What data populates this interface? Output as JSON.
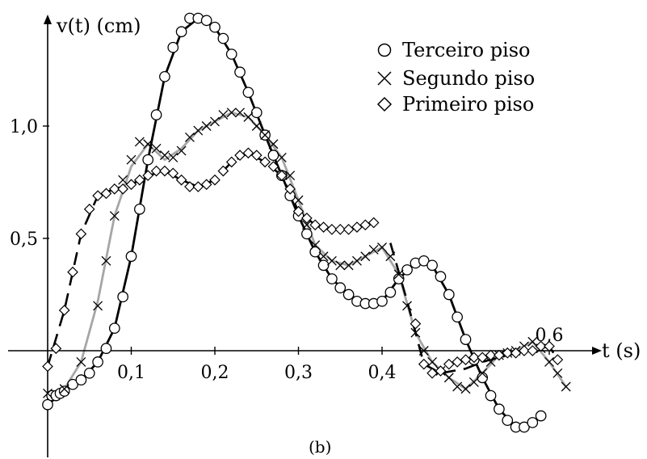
{
  "chart_data": {
    "type": "line",
    "panel_label": "(b)",
    "xlabel": "t (s)",
    "ylabel": "v(t) (cm)",
    "xlim": [
      -0.01,
      0.63
    ],
    "ylim": [
      -0.47,
      1.51
    ],
    "x_ticks": [
      {
        "value": 0.1,
        "label": "0,1"
      },
      {
        "value": 0.2,
        "label": "0,2"
      },
      {
        "value": 0.3,
        "label": "0,3"
      },
      {
        "value": 0.4,
        "label": "0,4"
      },
      {
        "value": 0.6,
        "label": "0,6"
      }
    ],
    "y_ticks": [
      {
        "value": 0.5,
        "label": "0,5"
      },
      {
        "value": 1.0,
        "label": "1,0"
      }
    ],
    "legend_position": "top-right",
    "legend": [
      {
        "label": "Terceiro piso",
        "marker": "circle"
      },
      {
        "label": "Segundo piso",
        "marker": "x"
      },
      {
        "label": "Primeiro piso",
        "marker": "diamond"
      }
    ],
    "series": [
      {
        "name": "Terceiro piso",
        "marker": "circle",
        "line_color": "#000000",
        "line_style": "solid",
        "line_segments": [
          [
            [
              0.0,
              -0.24
            ],
            [
              0.02,
              -0.18
            ],
            [
              0.04,
              -0.13
            ],
            [
              0.06,
              -0.05
            ],
            [
              0.08,
              0.1
            ],
            [
              0.1,
              0.42
            ],
            [
              0.12,
              0.85
            ],
            [
              0.14,
              1.22
            ],
            [
              0.16,
              1.42
            ],
            [
              0.18,
              1.48
            ],
            [
              0.2,
              1.44
            ],
            [
              0.22,
              1.32
            ],
            [
              0.24,
              1.15
            ],
            [
              0.26,
              0.96
            ],
            [
              0.28,
              0.78
            ],
            [
              0.3,
              0.6
            ],
            [
              0.32,
              0.44
            ],
            [
              0.34,
              0.32
            ],
            [
              0.36,
              0.25
            ],
            [
              0.38,
              0.21
            ],
            [
              0.4,
              0.22
            ],
            [
              0.42,
              0.32
            ],
            [
              0.44,
              0.39
            ],
            [
              0.46,
              0.38
            ],
            [
              0.48,
              0.25
            ],
            [
              0.5,
              0.05
            ],
            [
              0.52,
              -0.12
            ],
            [
              0.54,
              -0.26
            ],
            [
              0.56,
              -0.34
            ],
            [
              0.58,
              -0.32
            ],
            [
              0.59,
              -0.29
            ]
          ]
        ],
        "markers": [
          [
            0.0,
            -0.24
          ],
          [
            0.005,
            -0.2
          ],
          [
            0.01,
            -0.2
          ],
          [
            0.015,
            -0.19
          ],
          [
            0.02,
            -0.18
          ],
          [
            0.03,
            -0.15
          ],
          [
            0.04,
            -0.13
          ],
          [
            0.05,
            -0.1
          ],
          [
            0.06,
            -0.05
          ],
          [
            0.07,
            0.01
          ],
          [
            0.08,
            0.1
          ],
          [
            0.09,
            0.24
          ],
          [
            0.1,
            0.42
          ],
          [
            0.11,
            0.63
          ],
          [
            0.12,
            0.85
          ],
          [
            0.13,
            1.05
          ],
          [
            0.14,
            1.22
          ],
          [
            0.15,
            1.35
          ],
          [
            0.16,
            1.42
          ],
          [
            0.17,
            1.48
          ],
          [
            0.18,
            1.48
          ],
          [
            0.19,
            1.47
          ],
          [
            0.2,
            1.44
          ],
          [
            0.21,
            1.39
          ],
          [
            0.22,
            1.32
          ],
          [
            0.23,
            1.24
          ],
          [
            0.24,
            1.15
          ],
          [
            0.25,
            1.06
          ],
          [
            0.26,
            0.96
          ],
          [
            0.27,
            0.87
          ],
          [
            0.28,
            0.78
          ],
          [
            0.29,
            0.69
          ],
          [
            0.3,
            0.6
          ],
          [
            0.31,
            0.52
          ],
          [
            0.32,
            0.44
          ],
          [
            0.33,
            0.38
          ],
          [
            0.34,
            0.32
          ],
          [
            0.35,
            0.28
          ],
          [
            0.36,
            0.25
          ],
          [
            0.37,
            0.22
          ],
          [
            0.38,
            0.21
          ],
          [
            0.39,
            0.21
          ],
          [
            0.4,
            0.22
          ],
          [
            0.41,
            0.26
          ],
          [
            0.42,
            0.32
          ],
          [
            0.43,
            0.36
          ],
          [
            0.44,
            0.39
          ],
          [
            0.45,
            0.4
          ],
          [
            0.46,
            0.38
          ],
          [
            0.47,
            0.33
          ],
          [
            0.48,
            0.25
          ],
          [
            0.49,
            0.15
          ],
          [
            0.5,
            0.05
          ],
          [
            0.51,
            -0.04
          ],
          [
            0.52,
            -0.12
          ],
          [
            0.53,
            -0.2
          ],
          [
            0.54,
            -0.26
          ],
          [
            0.55,
            -0.31
          ],
          [
            0.56,
            -0.34
          ],
          [
            0.57,
            -0.34
          ],
          [
            0.58,
            -0.32
          ],
          [
            0.59,
            -0.29
          ]
        ]
      },
      {
        "name": "Segundo piso",
        "marker": "x",
        "line_color": "#a6a6a6",
        "line_style": "solid",
        "line_segments": [
          [
            [
              0.0,
              -0.19
            ],
            [
              0.02,
              -0.17
            ],
            [
              0.04,
              -0.05
            ],
            [
              0.06,
              0.22
            ],
            [
              0.08,
              0.6
            ],
            [
              0.1,
              0.82
            ],
            [
              0.12,
              0.92
            ],
            [
              0.14,
              0.85
            ],
            [
              0.16,
              0.9
            ],
            [
              0.18,
              0.98
            ],
            [
              0.2,
              1.02
            ],
            [
              0.22,
              1.06
            ],
            [
              0.24,
              1.04
            ],
            [
              0.26,
              0.96
            ],
            [
              0.28,
              0.86
            ],
            [
              0.3,
              0.67
            ],
            [
              0.32,
              0.47
            ],
            [
              0.34,
              0.4
            ],
            [
              0.36,
              0.38
            ],
            [
              0.38,
              0.42
            ],
            [
              0.4,
              0.46
            ],
            [
              0.42,
              0.34
            ],
            [
              0.44,
              0.08
            ],
            [
              0.46,
              -0.05
            ],
            [
              0.48,
              -0.12
            ],
            [
              0.5,
              -0.17
            ],
            [
              0.52,
              -0.1
            ],
            [
              0.54,
              -0.02
            ],
            [
              0.56,
              0.0
            ],
            [
              0.58,
              0.04
            ],
            [
              0.6,
              -0.05
            ],
            [
              0.62,
              -0.16
            ]
          ]
        ],
        "markers": [
          [
            0.0,
            -0.19
          ],
          [
            0.02,
            -0.17
          ],
          [
            0.04,
            -0.05
          ],
          [
            0.06,
            0.2
          ],
          [
            0.07,
            0.4
          ],
          [
            0.08,
            0.6
          ],
          [
            0.09,
            0.76
          ],
          [
            0.1,
            0.85
          ],
          [
            0.11,
            0.93
          ],
          [
            0.12,
            0.92
          ],
          [
            0.13,
            0.9
          ],
          [
            0.14,
            0.87
          ],
          [
            0.15,
            0.86
          ],
          [
            0.16,
            0.89
          ],
          [
            0.17,
            0.95
          ],
          [
            0.18,
            0.98
          ],
          [
            0.19,
            1.0
          ],
          [
            0.2,
            1.02
          ],
          [
            0.21,
            1.05
          ],
          [
            0.22,
            1.06
          ],
          [
            0.23,
            1.06
          ],
          [
            0.24,
            1.04
          ],
          [
            0.25,
            1.0
          ],
          [
            0.26,
            0.96
          ],
          [
            0.27,
            0.92
          ],
          [
            0.28,
            0.86
          ],
          [
            0.29,
            0.78
          ],
          [
            0.3,
            0.67
          ],
          [
            0.31,
            0.56
          ],
          [
            0.32,
            0.47
          ],
          [
            0.33,
            0.42
          ],
          [
            0.34,
            0.4
          ],
          [
            0.35,
            0.38
          ],
          [
            0.36,
            0.38
          ],
          [
            0.37,
            0.4
          ],
          [
            0.38,
            0.42
          ],
          [
            0.39,
            0.45
          ],
          [
            0.4,
            0.46
          ],
          [
            0.41,
            0.42
          ],
          [
            0.42,
            0.34
          ],
          [
            0.43,
            0.2
          ],
          [
            0.44,
            0.08
          ],
          [
            0.45,
            0.0
          ],
          [
            0.46,
            -0.05
          ],
          [
            0.47,
            -0.09
          ],
          [
            0.48,
            -0.12
          ],
          [
            0.49,
            -0.16
          ],
          [
            0.5,
            -0.17
          ],
          [
            0.51,
            -0.14
          ],
          [
            0.52,
            -0.1
          ],
          [
            0.53,
            -0.05
          ],
          [
            0.54,
            -0.02
          ],
          [
            0.55,
            -0.01
          ],
          [
            0.56,
            0.0
          ],
          [
            0.57,
            0.02
          ],
          [
            0.58,
            0.04
          ],
          [
            0.59,
            0.01
          ],
          [
            0.6,
            -0.05
          ],
          [
            0.61,
            -0.1
          ],
          [
            0.62,
            -0.16
          ]
        ]
      },
      {
        "name": "Primeiro piso",
        "marker": "diamond",
        "line_color": "#000000",
        "line_style": "dashed",
        "line_segments": [
          [
            [
              0.0,
              -0.07
            ],
            [
              0.02,
              0.18
            ],
            [
              0.04,
              0.52
            ],
            [
              0.06,
              0.69
            ],
            [
              0.08,
              0.72
            ],
            [
              0.1,
              0.74
            ],
            [
              0.12,
              0.78
            ],
            [
              0.14,
              0.8
            ],
            [
              0.16,
              0.76
            ],
            [
              0.18,
              0.73
            ],
            [
              0.2,
              0.76
            ],
            [
              0.22,
              0.84
            ],
            [
              0.24,
              0.88
            ],
            [
              0.26,
              0.84
            ],
            [
              0.28,
              0.78
            ],
            [
              0.3,
              0.62
            ],
            [
              0.32,
              0.56
            ],
            [
              0.34,
              0.54
            ],
            [
              0.36,
              0.54
            ],
            [
              0.38,
              0.56
            ],
            [
              0.39,
              0.57
            ]
          ],
          [
            [
              0.41,
              0.48
            ],
            [
              0.43,
              0.22
            ],
            [
              0.45,
              -0.06
            ],
            [
              0.47,
              -0.1
            ],
            [
              0.5,
              -0.08
            ],
            [
              0.52,
              -0.05
            ],
            [
              0.54,
              -0.03
            ],
            [
              0.56,
              -0.01
            ],
            [
              0.58,
              0.0
            ],
            [
              0.6,
              0.02
            ],
            [
              0.61,
              -0.04
            ]
          ]
        ],
        "markers": [
          [
            0.0,
            -0.07
          ],
          [
            0.01,
            0.01
          ],
          [
            0.02,
            0.18
          ],
          [
            0.03,
            0.35
          ],
          [
            0.04,
            0.52
          ],
          [
            0.05,
            0.63
          ],
          [
            0.06,
            0.69
          ],
          [
            0.07,
            0.7
          ],
          [
            0.08,
            0.72
          ],
          [
            0.09,
            0.72
          ],
          [
            0.1,
            0.74
          ],
          [
            0.11,
            0.76
          ],
          [
            0.12,
            0.78
          ],
          [
            0.13,
            0.8
          ],
          [
            0.14,
            0.8
          ],
          [
            0.15,
            0.79
          ],
          [
            0.16,
            0.76
          ],
          [
            0.17,
            0.73
          ],
          [
            0.18,
            0.73
          ],
          [
            0.19,
            0.74
          ],
          [
            0.2,
            0.76
          ],
          [
            0.21,
            0.8
          ],
          [
            0.22,
            0.84
          ],
          [
            0.23,
            0.87
          ],
          [
            0.24,
            0.88
          ],
          [
            0.25,
            0.87
          ],
          [
            0.26,
            0.84
          ],
          [
            0.27,
            0.82
          ],
          [
            0.28,
            0.78
          ],
          [
            0.29,
            0.72
          ],
          [
            0.3,
            0.62
          ],
          [
            0.31,
            0.59
          ],
          [
            0.32,
            0.56
          ],
          [
            0.33,
            0.55
          ],
          [
            0.34,
            0.54
          ],
          [
            0.35,
            0.54
          ],
          [
            0.36,
            0.54
          ],
          [
            0.37,
            0.55
          ],
          [
            0.38,
            0.56
          ],
          [
            0.39,
            0.57
          ],
          [
            0.44,
            0.12
          ],
          [
            0.45,
            -0.06
          ],
          [
            0.46,
            -0.1
          ],
          [
            0.47,
            -0.09
          ],
          [
            0.48,
            -0.06
          ],
          [
            0.49,
            -0.05
          ],
          [
            0.5,
            -0.04
          ],
          [
            0.51,
            -0.03
          ],
          [
            0.52,
            -0.03
          ],
          [
            0.53,
            -0.02
          ],
          [
            0.54,
            -0.02
          ],
          [
            0.55,
            -0.01
          ],
          [
            0.56,
            -0.01
          ],
          [
            0.57,
            0.0
          ],
          [
            0.58,
            0.0
          ],
          [
            0.59,
            0.02
          ],
          [
            0.6,
            0.02
          ],
          [
            0.61,
            -0.04
          ]
        ]
      }
    ]
  }
}
